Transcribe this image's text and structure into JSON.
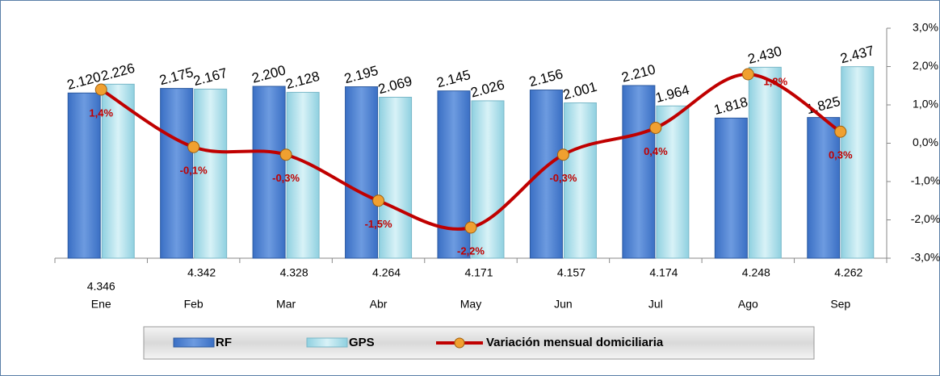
{
  "chart_data": {
    "type": "bar",
    "categories": [
      "Ene",
      "Feb",
      "Mar",
      "Abr",
      "May",
      "Jun",
      "Jul",
      "Ago",
      "Sep"
    ],
    "series": [
      {
        "name": "RF",
        "color": "#4f81bd",
        "values": [
          2120,
          2175,
          2200,
          2195,
          2145,
          2156,
          2210,
          1818,
          1825
        ],
        "value_labels": [
          "2.120",
          "2.175",
          "2.200",
          "2.195",
          "2.145",
          "2.156",
          "2.210",
          "1.818",
          "1.825"
        ]
      },
      {
        "name": "GPS",
        "color": "#b7e3ee",
        "values": [
          2226,
          2167,
          2128,
          2069,
          2026,
          2001,
          1964,
          2430,
          2437
        ],
        "value_labels": [
          "2.226",
          "2.167",
          "2.128",
          "2.069",
          "2.026",
          "2.001",
          "1.964",
          "2.430",
          "2.437"
        ]
      },
      {
        "name": "Variación mensual domiciliaria",
        "type": "line",
        "axis": "y2",
        "color": "#c00000",
        "marker_color": "#f0a030",
        "values": [
          1.4,
          -0.1,
          -0.3,
          -1.5,
          -2.2,
          -0.3,
          0.4,
          1.8,
          0.3
        ],
        "value_labels": [
          "1,4%",
          "-0,1%",
          "-0,3%",
          "-1,5%",
          "-2,2%",
          "-0,3%",
          "0,4%",
          "1,8%",
          "0,3%"
        ]
      }
    ],
    "totals": {
      "values": [
        4346,
        4342,
        4328,
        4264,
        4171,
        4157,
        4174,
        4248,
        4262
      ],
      "value_labels": [
        "4.346",
        "4.342",
        "4.328",
        "4.264",
        "4.171",
        "4.157",
        "4.174",
        "4.248",
        "4.262"
      ]
    },
    "ylim": [
      130,
      2900
    ],
    "y2lim": [
      -3,
      3
    ],
    "y2ticks": [
      {
        "value": 3,
        "label": "3,0%"
      },
      {
        "value": 2,
        "label": "2,0%"
      },
      {
        "value": 1,
        "label": "1,0%"
      },
      {
        "value": 0,
        "label": "0,0%"
      },
      {
        "value": -1,
        "label": "-1,0%"
      },
      {
        "value": -2,
        "label": "-2,0%"
      },
      {
        "value": -3,
        "label": "-3,0%"
      }
    ]
  }
}
